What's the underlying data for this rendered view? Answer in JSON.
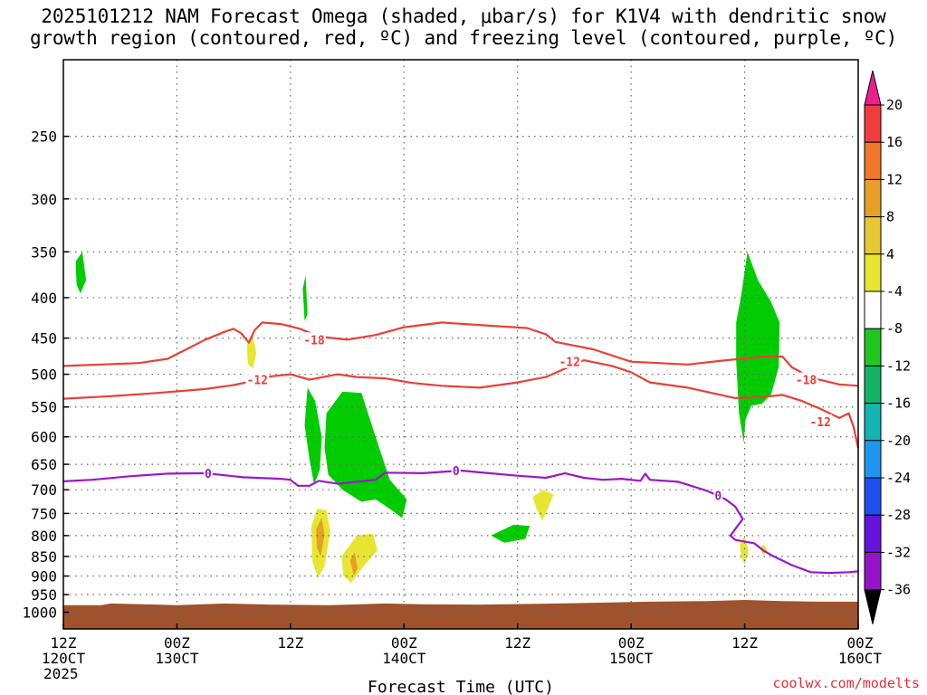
{
  "title": {
    "line1": "2025101212 NAM Forecast Omega (shaded, μbar/s) for K1V4 with dendritic snow",
    "line2": "growth region (contoured, red, ºC) and freezing level (contoured, purple, ºC)"
  },
  "chart_data": {
    "type": "contour",
    "xlabel": "Forecast Time (UTC)",
    "x_ticks": [
      {
        "line1": "12Z",
        "line2": "120CT",
        "line3": "2025"
      },
      {
        "line1": "00Z",
        "line2": "130CT",
        "line3": ""
      },
      {
        "line1": "12Z",
        "line2": "",
        "line3": ""
      },
      {
        "line1": "00Z",
        "line2": "140CT",
        "line3": ""
      },
      {
        "line1": "12Z",
        "line2": "",
        "line3": ""
      },
      {
        "line1": "00Z",
        "line2": "150CT",
        "line3": ""
      },
      {
        "line1": "12Z",
        "line2": "",
        "line3": ""
      },
      {
        "line1": "00Z",
        "line2": "160CT",
        "line3": ""
      }
    ],
    "x_range_hours": [
      0,
      84
    ],
    "y_axis": {
      "scale": "log-pressure",
      "units": "hPa",
      "reversed": true,
      "range": [
        1050,
        200
      ],
      "ticks": [
        250,
        300,
        350,
        400,
        450,
        500,
        550,
        600,
        650,
        700,
        750,
        800,
        850,
        900,
        950,
        1000
      ]
    },
    "grid": true,
    "colorbar": {
      "position": "right",
      "labels": [
        "20",
        "16",
        "12",
        "8",
        "4",
        "-4",
        "-8",
        "-12",
        "-16",
        "-20",
        "-24",
        "-28",
        "-32",
        "-36"
      ],
      "colors": [
        "#f01e8c",
        "#f03c3c",
        "#f07828",
        "#e6a028",
        "#e6c832",
        "#e6e632",
        "#ffffff",
        "#1ec81e",
        "#14b464",
        "#14b4b4",
        "#1e96f0",
        "#1e50f0",
        "#6414dc",
        "#9614c8",
        "#a0a0a0",
        "#000000"
      ]
    },
    "contours": [
      {
        "name": "-18",
        "color": "#e8403a",
        "labels": [
          {
            "x": 26.5,
            "p": 452,
            "text": "-18"
          },
          {
            "x": 78.5,
            "p": 508,
            "text": "-18"
          }
        ],
        "points": [
          [
            0,
            488
          ],
          [
            4,
            486
          ],
          [
            8,
            484
          ],
          [
            11,
            478
          ],
          [
            13,
            465
          ],
          [
            15,
            452
          ],
          [
            17,
            442
          ],
          [
            18,
            438
          ],
          [
            18.8,
            444
          ],
          [
            19.6,
            456
          ],
          [
            20.2,
            440
          ],
          [
            21,
            430
          ],
          [
            23,
            432
          ],
          [
            25,
            438
          ],
          [
            27,
            448
          ],
          [
            30,
            452
          ],
          [
            33,
            446
          ],
          [
            36,
            436
          ],
          [
            40,
            430
          ],
          [
            45,
            434
          ],
          [
            49,
            437
          ],
          [
            51,
            445
          ],
          [
            52,
            455
          ],
          [
            56,
            465
          ],
          [
            60,
            482
          ],
          [
            66,
            486
          ],
          [
            70,
            480
          ],
          [
            74,
            475
          ],
          [
            76,
            475
          ],
          [
            77,
            490
          ],
          [
            79,
            505
          ],
          [
            82,
            515
          ],
          [
            84,
            517
          ]
        ]
      },
      {
        "name": "-12",
        "color": "#e8403a",
        "labels": [
          {
            "x": 20.5,
            "p": 508,
            "text": "-12"
          },
          {
            "x": 53.5,
            "p": 482,
            "text": "-12"
          },
          {
            "x": 80,
            "p": 574,
            "text": "-12"
          }
        ],
        "points": [
          [
            0,
            537
          ],
          [
            5,
            533
          ],
          [
            10,
            528
          ],
          [
            15,
            522
          ],
          [
            18,
            516
          ],
          [
            20,
            510
          ],
          [
            22,
            503
          ],
          [
            24,
            500
          ],
          [
            26,
            508
          ],
          [
            29,
            500
          ],
          [
            31,
            504
          ],
          [
            34,
            506
          ],
          [
            37,
            513
          ],
          [
            40,
            517
          ],
          [
            44,
            520
          ],
          [
            48,
            512
          ],
          [
            51,
            504
          ],
          [
            53,
            492
          ],
          [
            55,
            480
          ],
          [
            58,
            488
          ],
          [
            60,
            497
          ],
          [
            62,
            512
          ],
          [
            66,
            520
          ],
          [
            71,
            536
          ],
          [
            74,
            534
          ],
          [
            76,
            531
          ],
          [
            78,
            540
          ],
          [
            80,
            553
          ],
          [
            82,
            568
          ],
          [
            83,
            560
          ],
          [
            83.5,
            582
          ],
          [
            84,
            620
          ]
        ]
      },
      {
        "name": "0",
        "color": "#9b18c6",
        "labels": [
          {
            "x": 15.3,
            "p": 667,
            "text": "0"
          },
          {
            "x": 41.5,
            "p": 662,
            "text": "0"
          },
          {
            "x": 69.2,
            "p": 712,
            "text": "0"
          }
        ],
        "points": [
          [
            0,
            683
          ],
          [
            3,
            680
          ],
          [
            7,
            673
          ],
          [
            11,
            668
          ],
          [
            15,
            667
          ],
          [
            19,
            675
          ],
          [
            23,
            678
          ],
          [
            24,
            680
          ],
          [
            24.8,
            692
          ],
          [
            26,
            692
          ],
          [
            27,
            682
          ],
          [
            29,
            688
          ],
          [
            31,
            684
          ],
          [
            33,
            680
          ],
          [
            34,
            666
          ],
          [
            38,
            667
          ],
          [
            42,
            662
          ],
          [
            45,
            667
          ],
          [
            48,
            672
          ],
          [
            51,
            676
          ],
          [
            53,
            667
          ],
          [
            55,
            676
          ],
          [
            57,
            680
          ],
          [
            59,
            678
          ],
          [
            61,
            682
          ],
          [
            61.5,
            668
          ],
          [
            62,
            680
          ],
          [
            65,
            684
          ],
          [
            68,
            702
          ],
          [
            70,
            720
          ],
          [
            71,
            735
          ],
          [
            71.8,
            762
          ],
          [
            70.5,
            800
          ],
          [
            71,
            810
          ],
          [
            73,
            818
          ],
          [
            74,
            836
          ],
          [
            75,
            849
          ],
          [
            77,
            872
          ],
          [
            79,
            890
          ],
          [
            81,
            892
          ],
          [
            83,
            890
          ],
          [
            84,
            888
          ]
        ]
      }
    ],
    "omega_regions": [
      {
        "sign": "down",
        "color": "#00cc00",
        "shape": [
          [
            1.3,
            360
          ],
          [
            2,
            350
          ],
          [
            2.4,
            380
          ],
          [
            1.8,
            395
          ],
          [
            1.4,
            385
          ]
        ]
      },
      {
        "sign": "down",
        "color": "#00cc00",
        "shape": [
          [
            25.3,
            390
          ],
          [
            25.6,
            375
          ],
          [
            25.8,
            420
          ],
          [
            25.5,
            428
          ]
        ]
      },
      {
        "sign": "down",
        "color": "#00cc00",
        "shape": [
          [
            25.8,
            520
          ],
          [
            26.6,
            540
          ],
          [
            27.3,
            600
          ],
          [
            27.1,
            660
          ],
          [
            26.5,
            690
          ],
          [
            26.0,
            640
          ],
          [
            25.5,
            580
          ]
        ]
      },
      {
        "sign": "down",
        "color": "#00cc00",
        "shape": [
          [
            27.8,
            560
          ],
          [
            29.5,
            526
          ],
          [
            31.5,
            528
          ],
          [
            33,
            600
          ],
          [
            34.5,
            680
          ],
          [
            36.3,
            720
          ],
          [
            35.8,
            760
          ],
          [
            34.5,
            740
          ],
          [
            33,
            720
          ],
          [
            31.5,
            725
          ],
          [
            29.5,
            700
          ],
          [
            28,
            670
          ],
          [
            27.6,
            620
          ]
        ]
      },
      {
        "sign": "down",
        "color": "#00cc00",
        "shape": [
          [
            45.2,
            800
          ],
          [
            47.6,
            775
          ],
          [
            49.3,
            778
          ],
          [
            48.8,
            808
          ],
          [
            46.6,
            817
          ]
        ]
      },
      {
        "sign": "down",
        "color": "#00cc00",
        "shape": [
          [
            71.6,
            400
          ],
          [
            72.3,
            350
          ],
          [
            73.4,
            380
          ],
          [
            74.8,
            405
          ],
          [
            75.7,
            430
          ],
          [
            75.6,
            490
          ],
          [
            74.8,
            530
          ],
          [
            73.8,
            545
          ],
          [
            72.7,
            548
          ],
          [
            72.1,
            570
          ],
          [
            71.9,
            610
          ],
          [
            71.4,
            560
          ],
          [
            71.1,
            480
          ],
          [
            71.1,
            430
          ]
        ]
      },
      {
        "sign": "up",
        "color": "#e6e632",
        "shape": [
          [
            19.4,
            460
          ],
          [
            20,
            446
          ],
          [
            20.4,
            470
          ],
          [
            20,
            492
          ],
          [
            19.5,
            485
          ]
        ]
      },
      {
        "sign": "up",
        "color": "#e6e632",
        "shape": [
          [
            26.2,
            780
          ],
          [
            26.8,
            740
          ],
          [
            27.8,
            743
          ],
          [
            28.2,
            790
          ],
          [
            27.6,
            875
          ],
          [
            26.9,
            905
          ],
          [
            26.3,
            860
          ]
        ]
      },
      {
        "sign": "up",
        "color": "#e6e632",
        "shape": [
          [
            29.4,
            850
          ],
          [
            31,
            800
          ],
          [
            32.7,
            795
          ],
          [
            33.2,
            835
          ],
          [
            31.8,
            872
          ],
          [
            30.4,
            918
          ],
          [
            29.6,
            900
          ]
        ]
      },
      {
        "sign": "up",
        "color": "#e6e632",
        "shape": [
          [
            49.6,
            715
          ],
          [
            50.7,
            700
          ],
          [
            51.8,
            710
          ],
          [
            51.2,
            740
          ],
          [
            50.6,
            765
          ],
          [
            50,
            740
          ]
        ]
      },
      {
        "sign": "up",
        "color": "#e6e632",
        "shape": [
          [
            71.5,
            820
          ],
          [
            72,
            800
          ],
          [
            72.4,
            840
          ],
          [
            72,
            870
          ],
          [
            71.6,
            850
          ]
        ]
      },
      {
        "sign": "up",
        "color": "#e6e632",
        "shape": [
          [
            73.6,
            830
          ],
          [
            74,
            820
          ],
          [
            74.4,
            835
          ],
          [
            74,
            848
          ]
        ]
      },
      {
        "sign": "up",
        "color": "#e6a028",
        "shape": [
          [
            26.7,
            785
          ],
          [
            27.3,
            760
          ],
          [
            27.6,
            800
          ],
          [
            27.2,
            850
          ],
          [
            26.8,
            830
          ]
        ]
      },
      {
        "sign": "up",
        "color": "#e6a028",
        "shape": [
          [
            30.3,
            860
          ],
          [
            30.8,
            840
          ],
          [
            31.1,
            880
          ],
          [
            30.7,
            900
          ]
        ]
      }
    ],
    "terrain": {
      "color": "#a0522d",
      "surface_pressure": [
        [
          0,
          980
        ],
        [
          4,
          980
        ],
        [
          5,
          975
        ],
        [
          10,
          978
        ],
        [
          12,
          980
        ],
        [
          17,
          975
        ],
        [
          22,
          978
        ],
        [
          28,
          980
        ],
        [
          34,
          975
        ],
        [
          38,
          977
        ],
        [
          44,
          978
        ],
        [
          50,
          976
        ],
        [
          56,
          973
        ],
        [
          62,
          970
        ],
        [
          68,
          968
        ],
        [
          72,
          965
        ],
        [
          76,
          968
        ],
        [
          80,
          970
        ],
        [
          84,
          970
        ]
      ]
    },
    "credit": "coolwx.com/modelts"
  }
}
